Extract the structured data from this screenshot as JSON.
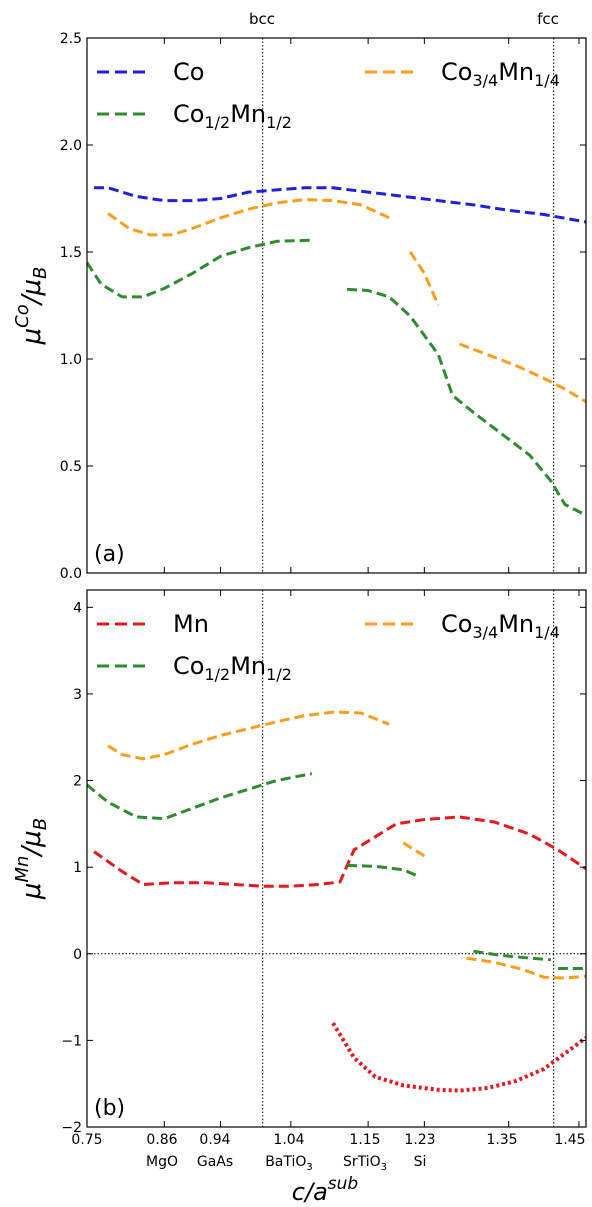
{
  "figure": {
    "xlabel_main": "c/a",
    "xlabel_sup": "sub",
    "x_tick_labels": [
      "0.75",
      "0.86",
      "0.94",
      "1.04",
      "1.15",
      "1.23",
      "1.35",
      "1.45"
    ],
    "substrate_labels": [
      "MgO",
      "GaAs",
      "BaTiO",
      "SrTiO",
      "Si"
    ],
    "substrate_subscripts": [
      "",
      "",
      "3",
      "3",
      ""
    ],
    "vline_labels": [
      "bcc",
      "fcc"
    ],
    "colors": {
      "blue": "#1f1fe0",
      "green": "#2e8b2e",
      "orange": "#ff9c1a",
      "red": "#e8181c"
    }
  },
  "chart_data": [
    {
      "type": "line",
      "panel_label": "(a)",
      "ylabel_main": "μ",
      "ylabel_sup": "Co",
      "ylabel_tail": "/μ",
      "ylabel_sub": "B",
      "xlim": [
        0.75,
        1.46
      ],
      "ylim": [
        0.0,
        2.5
      ],
      "y_ticks": [
        "0.0",
        "0.5",
        "1.0",
        "1.5",
        "2.0",
        "2.5"
      ],
      "x_ticks": [
        0.75,
        0.86,
        0.94,
        1.04,
        1.15,
        1.23,
        1.35,
        1.45
      ],
      "vlines": [
        1.0,
        1.414
      ],
      "legend": [
        {
          "series": 0,
          "base": "Co",
          "sub1": "",
          "mid": "",
          "sub2": ""
        },
        {
          "series": 2,
          "base": "Co",
          "sub1": "3/4",
          "mid": "Mn",
          "sub2": "1/4"
        },
        {
          "series": 1,
          "base": "Co",
          "sub1": "1/2",
          "mid": "Mn",
          "sub2": "1/2"
        }
      ],
      "series": [
        {
          "name": "Co",
          "color": "#1f1fe0",
          "segments": [
            [
              [
                0.76,
                1.8
              ],
              [
                0.78,
                1.8
              ],
              [
                0.82,
                1.76
              ],
              [
                0.86,
                1.74
              ],
              [
                0.9,
                1.74
              ],
              [
                0.94,
                1.75
              ],
              [
                0.98,
                1.78
              ],
              [
                1.02,
                1.79
              ],
              [
                1.06,
                1.8
              ],
              [
                1.1,
                1.8
              ],
              [
                1.15,
                1.78
              ],
              [
                1.2,
                1.76
              ],
              [
                1.25,
                1.74
              ],
              [
                1.3,
                1.72
              ],
              [
                1.35,
                1.695
              ],
              [
                1.4,
                1.675
              ],
              [
                1.46,
                1.64
              ]
            ]
          ]
        },
        {
          "name": "Co1/2Mn1/2",
          "color": "#2e8b2e",
          "segments": [
            [
              [
                0.75,
                1.45
              ],
              [
                0.77,
                1.35
              ],
              [
                0.8,
                1.29
              ],
              [
                0.83,
                1.29
              ],
              [
                0.86,
                1.33
              ],
              [
                0.9,
                1.4
              ],
              [
                0.94,
                1.48
              ],
              [
                0.98,
                1.52
              ],
              [
                1.02,
                1.55
              ],
              [
                1.07,
                1.555
              ]
            ],
            [
              [
                1.12,
                1.325
              ],
              [
                1.15,
                1.32
              ],
              [
                1.18,
                1.29
              ],
              [
                1.21,
                1.2
              ],
              [
                1.25,
                1.02
              ],
              [
                1.27,
                0.83
              ],
              [
                1.3,
                0.75
              ],
              [
                1.34,
                0.65
              ],
              [
                1.38,
                0.55
              ],
              [
                1.41,
                0.43
              ],
              [
                1.43,
                0.32
              ],
              [
                1.46,
                0.27
              ]
            ]
          ]
        },
        {
          "name": "Co3/4Mn1/4",
          "color": "#ff9c1a",
          "segments": [
            [
              [
                0.78,
                1.68
              ],
              [
                0.81,
                1.61
              ],
              [
                0.84,
                1.58
              ],
              [
                0.87,
                1.58
              ],
              [
                0.9,
                1.61
              ],
              [
                0.94,
                1.66
              ],
              [
                0.98,
                1.7
              ],
              [
                1.02,
                1.73
              ],
              [
                1.06,
                1.745
              ],
              [
                1.1,
                1.74
              ],
              [
                1.14,
                1.72
              ],
              [
                1.18,
                1.66
              ]
            ],
            [
              [
                1.21,
                1.5
              ],
              [
                1.23,
                1.4
              ],
              [
                1.25,
                1.25
              ]
            ],
            [
              [
                1.28,
                1.07
              ],
              [
                1.32,
                1.02
              ],
              [
                1.36,
                0.97
              ],
              [
                1.4,
                0.91
              ],
              [
                1.43,
                0.86
              ],
              [
                1.46,
                0.8
              ]
            ]
          ]
        }
      ]
    },
    {
      "type": "line",
      "panel_label": "(b)",
      "ylabel_main": "μ",
      "ylabel_sup": "Mn",
      "ylabel_tail": "/μ",
      "ylabel_sub": "B",
      "xlim": [
        0.75,
        1.46
      ],
      "ylim": [
        -2,
        4.2
      ],
      "y_ticks": [
        "−2",
        "−1",
        "0",
        "1",
        "2",
        "3",
        "4"
      ],
      "y_tick_values": [
        -2,
        -1,
        0,
        1,
        2,
        3,
        4
      ],
      "x_ticks": [
        0.75,
        0.86,
        0.94,
        1.04,
        1.15,
        1.23,
        1.35,
        1.45
      ],
      "vlines": [
        1.0,
        1.414
      ],
      "hline": 0,
      "legend": [
        {
          "series": 0,
          "base": "Mn",
          "sub1": "",
          "mid": "",
          "sub2": ""
        },
        {
          "series": 2,
          "base": "Co",
          "sub1": "3/4",
          "mid": "Mn",
          "sub2": "1/4"
        },
        {
          "series": 1,
          "base": "Co",
          "sub1": "1/2",
          "mid": "Mn",
          "sub2": "1/2"
        }
      ],
      "series": [
        {
          "name": "Mn",
          "color": "#e8181c",
          "segments": [
            [
              [
                0.76,
                1.18
              ],
              [
                0.8,
                0.95
              ],
              [
                0.83,
                0.8
              ],
              [
                0.87,
                0.82
              ],
              [
                0.92,
                0.82
              ],
              [
                0.96,
                0.8
              ],
              [
                1.0,
                0.78
              ],
              [
                1.04,
                0.78
              ],
              [
                1.08,
                0.8
              ],
              [
                1.11,
                0.83
              ],
              [
                1.13,
                1.2
              ],
              [
                1.16,
                1.35
              ],
              [
                1.19,
                1.5
              ],
              [
                1.23,
                1.55
              ],
              [
                1.28,
                1.58
              ],
              [
                1.33,
                1.52
              ],
              [
                1.38,
                1.38
              ],
              [
                1.42,
                1.2
              ],
              [
                1.46,
                0.98
              ]
            ]
          ]
        },
        {
          "name": "Co1/2Mn1/2",
          "color": "#2e8b2e",
          "segments": [
            [
              [
                0.75,
                1.95
              ],
              [
                0.78,
                1.75
              ],
              [
                0.82,
                1.58
              ],
              [
                0.86,
                1.56
              ],
              [
                0.9,
                1.68
              ],
              [
                0.94,
                1.8
              ],
              [
                0.98,
                1.9
              ],
              [
                1.02,
                2.0
              ],
              [
                1.07,
                2.08
              ]
            ],
            [
              [
                1.12,
                1.02
              ],
              [
                1.16,
                1.01
              ],
              [
                1.2,
                0.97
              ],
              [
                1.22,
                0.9
              ]
            ],
            [
              [
                1.3,
                0.03
              ],
              [
                1.34,
                -0.02
              ],
              [
                1.38,
                -0.05
              ],
              [
                1.41,
                -0.07
              ]
            ],
            [
              [
                1.42,
                -0.17
              ],
              [
                1.46,
                -0.17
              ]
            ]
          ]
        },
        {
          "name": "Co3/4Mn1/4",
          "color": "#ff9c1a",
          "segments": [
            [
              [
                0.78,
                2.4
              ],
              [
                0.8,
                2.3
              ],
              [
                0.83,
                2.25
              ],
              [
                0.86,
                2.3
              ],
              [
                0.9,
                2.42
              ],
              [
                0.94,
                2.52
              ],
              [
                0.98,
                2.6
              ],
              [
                1.02,
                2.68
              ],
              [
                1.06,
                2.75
              ],
              [
                1.1,
                2.79
              ],
              [
                1.14,
                2.78
              ],
              [
                1.18,
                2.65
              ]
            ],
            [
              [
                1.2,
                1.28
              ],
              [
                1.23,
                1.13
              ]
            ],
            [
              [
                1.29,
                -0.05
              ],
              [
                1.33,
                -0.1
              ],
              [
                1.37,
                -0.18
              ],
              [
                1.4,
                -0.27
              ],
              [
                1.43,
                -0.28
              ],
              [
                1.46,
                -0.26
              ]
            ]
          ]
        },
        {
          "name": "Mn",
          "color": "#e8181c",
          "dotted": true,
          "segments": [
            [
              [
                1.1,
                -0.8
              ],
              [
                1.13,
                -1.2
              ],
              [
                1.16,
                -1.42
              ],
              [
                1.2,
                -1.52
              ],
              [
                1.25,
                -1.57
              ],
              [
                1.28,
                -1.58
              ],
              [
                1.32,
                -1.55
              ],
              [
                1.36,
                -1.47
              ],
              [
                1.4,
                -1.33
              ],
              [
                1.43,
                -1.15
              ],
              [
                1.46,
                -0.97
              ]
            ]
          ]
        }
      ]
    }
  ]
}
